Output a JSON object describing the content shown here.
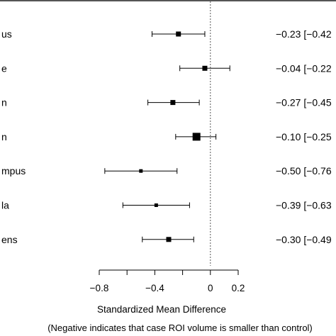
{
  "chart_data": {
    "type": "forest",
    "region_labels": [
      "us",
      "e",
      "n",
      "n",
      "mpus",
      "la",
      "ens"
    ],
    "rows": [
      {
        "label": "us",
        "estimate": -0.23,
        "ci_low": -0.42,
        "ci_high": -0.04,
        "weight": 2,
        "ci_text": "−0.23 [−0.42"
      },
      {
        "label": "e",
        "estimate": -0.04,
        "ci_low": -0.22,
        "ci_high": 0.14,
        "weight": 2,
        "ci_text": "−0.04 [−0.22"
      },
      {
        "label": "n",
        "estimate": -0.27,
        "ci_low": -0.45,
        "ci_high": -0.08,
        "weight": 2,
        "ci_text": "−0.27 [−0.45"
      },
      {
        "label": "n",
        "estimate": -0.1,
        "ci_low": -0.25,
        "ci_high": 0.04,
        "weight": 4,
        "ci_text": "−0.10 [−0.25"
      },
      {
        "label": "mpus",
        "estimate": -0.5,
        "ci_low": -0.76,
        "ci_high": -0.24,
        "weight": 1,
        "ci_text": "−0.50 [−0.76"
      },
      {
        "label": "la",
        "estimate": -0.39,
        "ci_low": -0.63,
        "ci_high": -0.15,
        "weight": 1,
        "ci_text": "−0.39 [−0.63"
      },
      {
        "label": "ens",
        "estimate": -0.3,
        "ci_low": -0.49,
        "ci_high": -0.12,
        "weight": 2,
        "ci_text": "−0.30 [−0.49"
      }
    ],
    "x_ticks": [
      -0.8,
      -0.4,
      0,
      0.2
    ],
    "x_tick_labels": [
      "−0.8",
      "−0.4",
      "0",
      "0.2"
    ],
    "x_minor_ticks": [
      -0.6,
      -0.2
    ],
    "xlim": [
      -0.8,
      0.2
    ],
    "reference_line": 0,
    "xlabel": "Standardized Mean Difference",
    "xlabel_note": "(Negative indicates that case ROI volume is smaller than control)",
    "grid": false
  }
}
